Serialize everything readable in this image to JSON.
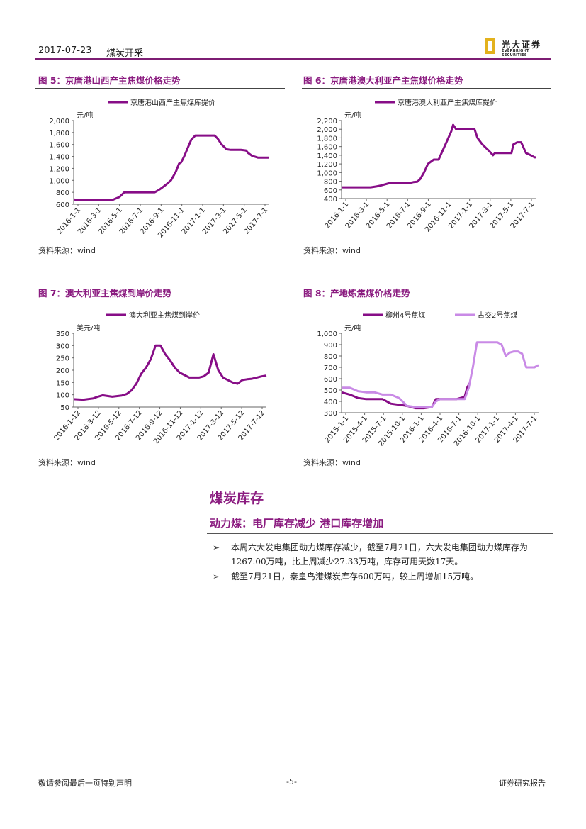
{
  "header": {
    "date": "2017-07-23",
    "category": "煤炭开采",
    "logo_cn": "光大证券",
    "logo_en": "EVERBRIGHT SECURITIES"
  },
  "figures": [
    {
      "title": "图 5：京唐港山西产主焦煤价格走势",
      "source": "资料来源：wind"
    },
    {
      "title": "图 6：京唐港澳大利亚产主焦煤价格走势",
      "source": "资料来源：wind"
    },
    {
      "title": "图 7：澳大利亚主焦煤到岸价走势",
      "source": "资料来源：wind"
    },
    {
      "title": "图 8：产地炼焦煤价格走势",
      "source": "资料来源：wind"
    }
  ],
  "colors": {
    "accent": "#8b1c80",
    "series_dark": "#870d87",
    "series_light": "#c98ae6"
  },
  "chart_data": [
    {
      "type": "line",
      "ylabel": "元/吨",
      "ylim": [
        600,
        2000
      ],
      "yticks": [
        "600",
        "800",
        "1,000",
        "1,200",
        "1,400",
        "1,600",
        "1,800",
        "2,000"
      ],
      "xticks": [
        "2016-1-1",
        "2016-3-1",
        "2016-5-1",
        "2016-7-1",
        "2016-9-1",
        "2016-11-1",
        "2017-1-1",
        "2017-3-1",
        "2017-5-1",
        "2017-7-1"
      ],
      "series": [
        {
          "name": "京唐港山西产主焦煤库提价",
          "x": [
            0,
            0.5,
            2.5,
            3.8,
            4.2,
            4.5,
            5,
            6,
            8,
            8.2,
            8.5,
            8.9,
            9.2,
            9.6,
            10.1,
            10.4,
            10.6,
            10.9,
            11.4,
            11.6,
            12,
            13.9,
            14.2,
            14.6,
            15.1,
            15.5,
            16.5,
            17,
            17.2,
            17.6,
            18.2,
            19.3
          ],
          "values": [
            680,
            670,
            670,
            670,
            700,
            720,
            800,
            800,
            800,
            820,
            850,
            900,
            940,
            1000,
            1150,
            1280,
            1300,
            1400,
            1600,
            1680,
            1750,
            1750,
            1700,
            1600,
            1520,
            1510,
            1510,
            1500,
            1460,
            1410,
            1380,
            1380
          ]
        }
      ]
    },
    {
      "type": "line",
      "ylabel": "元/吨",
      "ylim": [
        400,
        2200
      ],
      "yticks": [
        "400",
        "600",
        "800",
        "1,000",
        "1,200",
        "1,400",
        "1,600",
        "1,800",
        "2,000",
        "2,200"
      ],
      "xticks": [
        "2016-1-1",
        "2016-3-1",
        "2016-5-1",
        "2016-7-1",
        "2016-9-1",
        "2016-11-1",
        "2017-1-1",
        "2017-3-1",
        "2017-5-1",
        "2017-7-1"
      ],
      "series": [
        {
          "name": "京唐港澳大利亚产主焦煤库提价",
          "x": [
            0,
            1,
            2,
            3,
            3.6,
            4,
            5,
            6,
            7,
            7.4,
            7.8,
            8.1,
            8.5,
            8.9,
            9.5,
            10,
            10.4,
            10.8,
            11.3,
            11.5,
            11.8,
            12,
            13.7,
            14,
            14.5,
            15.2,
            15.6,
            15.8,
            16.2,
            17.5,
            17.7,
            18.1,
            18.5,
            18.8,
            19,
            19.5,
            19.9,
            20
          ],
          "values": [
            660,
            660,
            660,
            660,
            680,
            700,
            760,
            760,
            760,
            780,
            790,
            850,
            1000,
            1200,
            1300,
            1300,
            1500,
            1700,
            1950,
            2100,
            2000,
            2000,
            2000,
            1800,
            1650,
            1500,
            1400,
            1450,
            1450,
            1450,
            1650,
            1700,
            1700,
            1550,
            1450,
            1400,
            1350,
            1350
          ]
        }
      ]
    },
    {
      "type": "line",
      "ylabel": "美元/吨",
      "ylim": [
        50,
        350
      ],
      "yticks": [
        "50",
        "100",
        "150",
        "200",
        "250",
        "300",
        "350"
      ],
      "xticks": [
        "2016-1-12",
        "2016-3-12",
        "2016-5-12",
        "2016-7-12",
        "2016-9-12",
        "2016-11-12",
        "2017-1-12",
        "2017-3-12",
        "2017-5-12",
        "2017-7-12"
      ],
      "series": [
        {
          "name": "澳大利亚主焦煤到岸价",
          "x": [
            0,
            1,
            2,
            2.5,
            3,
            3.5,
            4,
            5,
            5.5,
            6,
            6.5,
            7,
            7.5,
            8,
            8.5,
            9,
            9.5,
            10,
            10.5,
            11,
            11.5,
            12,
            13,
            13.5,
            14,
            14.5,
            15,
            15.5,
            16,
            16.5,
            17,
            17.5,
            18,
            18.5,
            19,
            19.5,
            20
          ],
          "values": [
            82,
            80,
            85,
            92,
            98,
            95,
            92,
            97,
            103,
            118,
            145,
            185,
            210,
            245,
            300,
            300,
            265,
            240,
            210,
            190,
            180,
            170,
            170,
            175,
            190,
            265,
            200,
            170,
            160,
            150,
            145,
            160,
            163,
            165,
            170,
            175,
            178
          ]
        }
      ]
    },
    {
      "type": "line",
      "ylim": [
        300,
        1000
      ],
      "yticks": [
        "300",
        "400",
        "500",
        "600",
        "700",
        "800",
        "900",
        "1,000"
      ],
      "ylabel": "元/吨",
      "xticks": [
        "2015-1-1",
        "2015-4-1",
        "2015-7-1",
        "2015-10-1",
        "2016-1-1",
        "2016-4-1",
        "2016-7-1",
        "2016-10-1",
        "2017-1-1",
        "2017-4-1",
        "2017-7-1"
      ],
      "series": [
        {
          "name": "柳州4号焦煤",
          "x": [
            0,
            0.5,
            1,
            1.5,
            2,
            3,
            4,
            5,
            6,
            7,
            8,
            8.5,
            9,
            10,
            11,
            11.5,
            12,
            13,
            14,
            15,
            15.3,
            15.6
          ],
          "values": [
            480,
            470,
            460,
            445,
            430,
            420,
            420,
            420,
            380,
            370,
            360,
            350,
            340,
            340,
            350,
            420,
            420,
            420,
            420,
            440,
            520,
            560
          ]
        },
        {
          "name": "古交2号焦煤",
          "x": [
            0,
            1,
            2,
            3,
            4,
            5,
            6,
            7,
            8,
            9,
            10,
            11,
            11.5,
            12,
            13,
            14,
            15,
            15.5,
            16,
            16.5,
            17,
            18,
            19,
            19.5,
            20,
            20.5,
            21,
            21.5,
            22,
            22.5,
            23,
            23.5,
            24
          ],
          "values": [
            520,
            520,
            490,
            480,
            480,
            460,
            460,
            430,
            360,
            350,
            350,
            350,
            400,
            420,
            420,
            420,
            420,
            520,
            700,
            920,
            920,
            920,
            920,
            900,
            800,
            830,
            840,
            840,
            820,
            700,
            700,
            700,
            720
          ]
        }
      ]
    }
  ],
  "section": {
    "title": "煤炭库存",
    "subtitle": "动力煤：电厂库存减少 港口库存增加"
  },
  "bullets": [
    {
      "arrow": "➢",
      "text": "本周六大发电集团动力煤库存减少，截至7月21日，六大发电集团动力煤库存为1267.00万吨，比上周减少27.33万吨，库存可用天数17天。"
    },
    {
      "arrow": "➢",
      "text": "截至7月21日，秦皇岛港煤炭库存600万吨，较上周增加15万吨。"
    }
  ],
  "footer": {
    "left": "敬请参阅最后一页特别声明",
    "center": "-5-",
    "right": "证券研究报告"
  }
}
